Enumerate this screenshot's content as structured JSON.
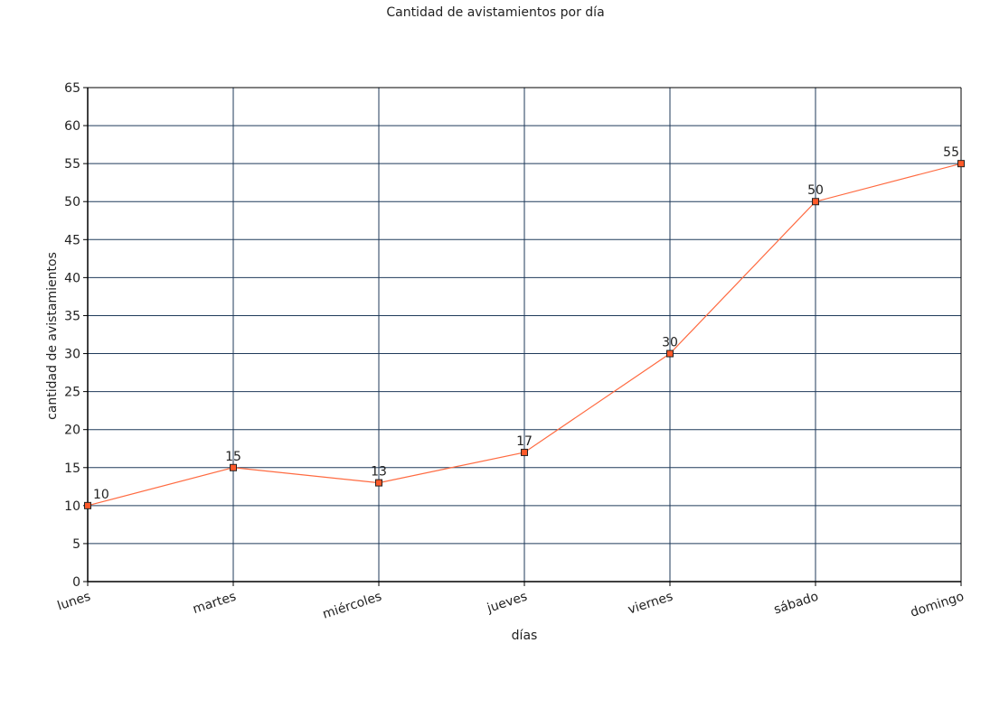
{
  "chart_data": {
    "type": "line",
    "title": "Cantidad de avistamientos por día",
    "xlabel": "días",
    "ylabel": "cantidad de avistamientos",
    "categories": [
      "lunes",
      "martes",
      "miércoles",
      "jueves",
      "viernes",
      "sábado",
      "domingo"
    ],
    "series": [
      {
        "values": [
          10,
          15,
          13,
          17,
          30,
          50,
          55
        ],
        "data_labels": [
          "10",
          "15",
          "13",
          "17",
          "30",
          "50",
          "55"
        ]
      }
    ],
    "ylim": [
      0,
      65
    ],
    "yticks": [
      "0",
      "5",
      "10",
      "15",
      "20",
      "25",
      "30",
      "35",
      "40",
      "45",
      "50",
      "55",
      "60",
      "65"
    ],
    "grid": true,
    "legend": "none",
    "colors": {
      "line": "#ff6a40",
      "marker_fill": "#ff5a2a",
      "marker_stroke": "#222222",
      "grid": "#1f3a5a",
      "axis": "#000000"
    }
  }
}
